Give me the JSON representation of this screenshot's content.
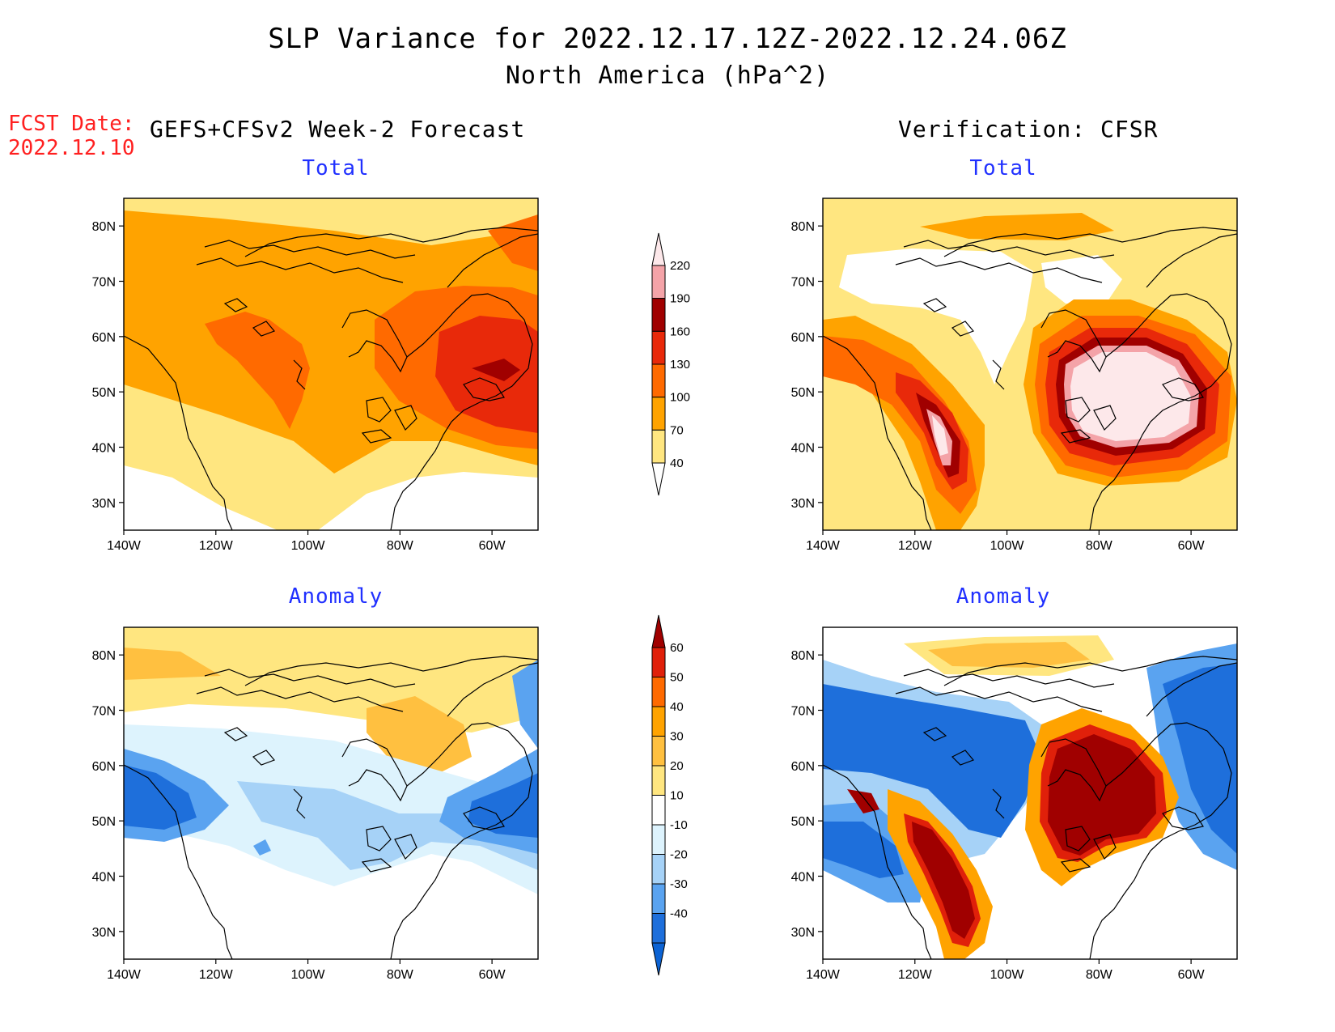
{
  "header": {
    "title": "SLP Variance for 2022.12.17.12Z-2022.12.24.06Z",
    "subtitle": "North America (hPa^2)",
    "fcst_label": "FCST Date:",
    "fcst_date": "2022.12.10",
    "left_column": "GEFS+CFSv2 Week-2 Forecast",
    "right_column": "Verification: CFSR"
  },
  "panels": [
    {
      "id": "fcst-total",
      "title": "Total"
    },
    {
      "id": "verif-total",
      "title": "Total"
    },
    {
      "id": "fcst-anomaly",
      "title": "Anomaly"
    },
    {
      "id": "verif-anomaly",
      "title": "Anomaly"
    }
  ],
  "axes": {
    "lat_labels": [
      "80N",
      "70N",
      "60N",
      "50N",
      "40N",
      "30N"
    ],
    "lon_labels": [
      "140W",
      "120W",
      "100W",
      "80W",
      "60W"
    ]
  },
  "total_colorbar": {
    "levels": [
      "40",
      "70",
      "100",
      "130",
      "160",
      "190",
      "220"
    ],
    "colors": [
      "#ffffff",
      "#ffe680",
      "#ffa300",
      "#ff6a00",
      "#e8290a",
      "#a00000",
      "#f4a3a8",
      "#fde8ea"
    ]
  },
  "anomaly_colorbar": {
    "levels": [
      "-40",
      "-30",
      "-20",
      "-10",
      "10",
      "20",
      "30",
      "40",
      "50",
      "60"
    ],
    "colors": [
      "#0c63d4",
      "#1e6fdb",
      "#5aa3f0",
      "#a6d2f7",
      "#ddf3fd",
      "#ffffff",
      "#ffe680",
      "#ffc040",
      "#ffa300",
      "#ff6a00",
      "#e0200a",
      "#a00000"
    ]
  }
}
